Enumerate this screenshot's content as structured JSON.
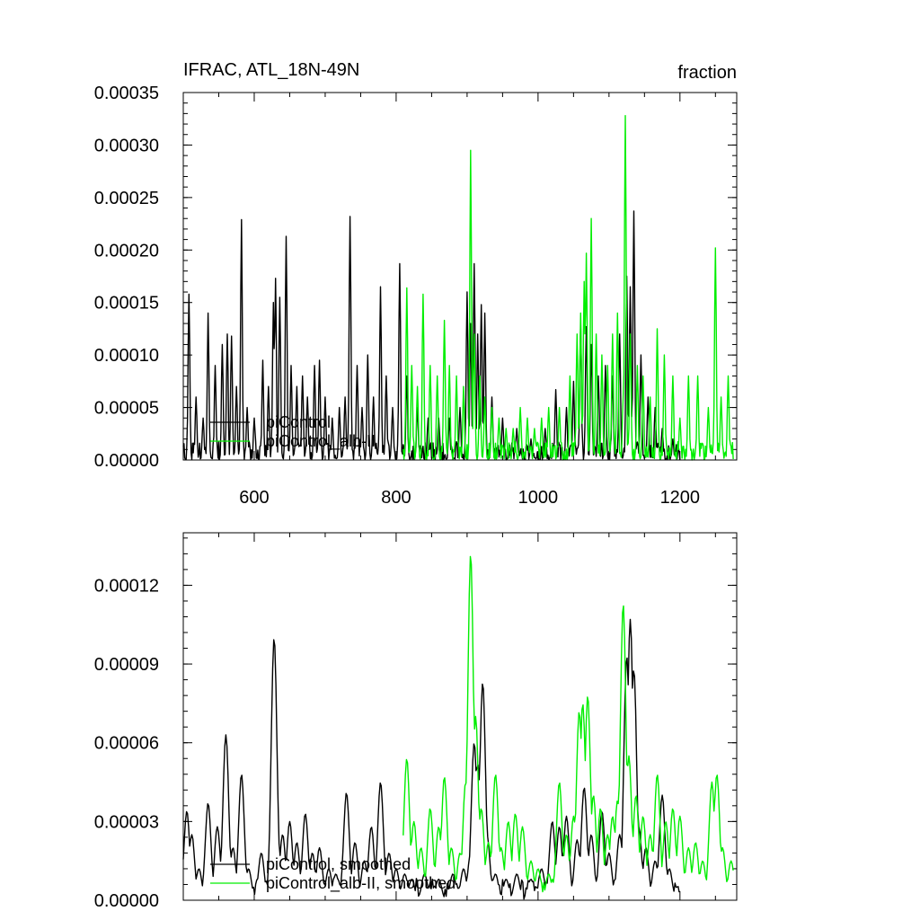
{
  "chart_data": [
    {
      "type": "line",
      "title_left": "IFRAC, ATL_18N-49N",
      "title_right": "fraction",
      "xlim": [
        500,
        1280
      ],
      "ylim": [
        0,
        0.00035
      ],
      "xticks": [
        600,
        800,
        1000,
        1200
      ],
      "xtick_labels": [
        "600",
        "800",
        "1000",
        "1200"
      ],
      "yticks": [
        0,
        5e-05,
        0.0001,
        0.00015,
        0.0002,
        0.00025,
        0.0003,
        0.00035
      ],
      "ytick_labels": [
        "0.00000",
        "0.00005",
        "0.00010",
        "0.00015",
        "0.00020",
        "0.00025",
        "0.00030",
        "0.00035"
      ],
      "legend_position": "bottom-left",
      "series": [
        {
          "name": "piControl",
          "color": "#000000",
          "x_start": 500,
          "x_end": 1200,
          "peaks": [
            [
              508,
              0.000158
            ],
            [
              518,
              6e-05
            ],
            [
              528,
              4e-05
            ],
            [
              535,
              0.00014
            ],
            [
              545,
              9e-05
            ],
            [
              555,
              0.00011
            ],
            [
              562,
              0.00012
            ],
            [
              568,
              0.000118
            ],
            [
              575,
              7e-05
            ],
            [
              582,
              0.000229
            ],
            [
              590,
              5e-05
            ],
            [
              600,
              4e-05
            ],
            [
              612,
              9.5e-05
            ],
            [
              620,
              7e-05
            ],
            [
              627,
              0.00015
            ],
            [
              630,
              0.000173
            ],
            [
              636,
              0.000155
            ],
            [
              645,
              0.000213
            ],
            [
              652,
              9e-05
            ],
            [
              660,
              7e-05
            ],
            [
              668,
              8e-05
            ],
            [
              675,
              6e-05
            ],
            [
              685,
              9e-05
            ],
            [
              692,
              9.5e-05
            ],
            [
              700,
              6e-05
            ],
            [
              710,
              4e-05
            ],
            [
              720,
              5e-05
            ],
            [
              728,
              6e-05
            ],
            [
              735,
              0.000232
            ],
            [
              745,
              9e-05
            ],
            [
              752,
              5e-05
            ],
            [
              760,
              0.0001
            ],
            [
              768,
              6e-05
            ],
            [
              778,
              0.000165
            ],
            [
              786,
              8e-05
            ],
            [
              795,
              5e-05
            ],
            [
              805,
              0.000187
            ],
            [
              815,
              8e-05
            ],
            [
              830,
              5e-05
            ],
            [
              845,
              4e-05
            ],
            [
              860,
              4e-05
            ],
            [
              875,
              4e-05
            ],
            [
              890,
              5e-05
            ],
            [
              900,
              0.00016
            ],
            [
              905,
              0.00013
            ],
            [
              910,
              0.000187
            ],
            [
              915,
              0.00012
            ],
            [
              920,
              0.000148
            ],
            [
              925,
              0.00014
            ],
            [
              935,
              6e-05
            ],
            [
              950,
              4e-05
            ],
            [
              970,
              3e-05
            ],
            [
              990,
              2e-05
            ],
            [
              1010,
              3e-05
            ],
            [
              1025,
              6.7e-05
            ],
            [
              1040,
              5e-05
            ],
            [
              1050,
              7.5e-05
            ],
            [
              1060,
              0.00013
            ],
            [
              1068,
              0.000127
            ],
            [
              1075,
              0.00011
            ],
            [
              1085,
              8e-05
            ],
            [
              1095,
              9e-05
            ],
            [
              1105,
              8e-05
            ],
            [
              1115,
              0.00012
            ],
            [
              1125,
              0.000175
            ],
            [
              1130,
              0.000165
            ],
            [
              1135,
              0.000237
            ],
            [
              1145,
              0.0001
            ],
            [
              1155,
              6e-05
            ],
            [
              1165,
              5e-05
            ],
            [
              1175,
              3e-05
            ],
            [
              1190,
              2e-05
            ]
          ]
        },
        {
          "name": "piControl_alb-II",
          "color": "#00ee00",
          "x_start": 810,
          "x_end": 1275,
          "peaks": [
            [
              815,
              0.000164
            ],
            [
              822,
              9e-05
            ],
            [
              830,
              7e-05
            ],
            [
              838,
              0.000158
            ],
            [
              848,
              9e-05
            ],
            [
              858,
              8e-05
            ],
            [
              868,
              0.000133
            ],
            [
              875,
              9e-05
            ],
            [
              885,
              8e-05
            ],
            [
              895,
              7e-05
            ],
            [
              905,
              0.000295
            ],
            [
              910,
              0.00012
            ],
            [
              918,
              8e-05
            ],
            [
              925,
              6e-05
            ],
            [
              935,
              5e-05
            ],
            [
              945,
              4e-05
            ],
            [
              955,
              3e-05
            ],
            [
              965,
              3e-05
            ],
            [
              975,
              5e-05
            ],
            [
              985,
              4e-05
            ],
            [
              995,
              3e-05
            ],
            [
              1005,
              4e-05
            ],
            [
              1015,
              5e-05
            ],
            [
              1030,
              5e-05
            ],
            [
              1045,
              8e-05
            ],
            [
              1055,
              0.00012
            ],
            [
              1060,
              0.00014
            ],
            [
              1065,
              0.00017
            ],
            [
              1068,
              0.000197
            ],
            [
              1075,
              0.00023
            ],
            [
              1082,
              0.00012
            ],
            [
              1090,
              0.0001
            ],
            [
              1098,
              9e-05
            ],
            [
              1105,
              0.00012
            ],
            [
              1112,
              0.00014
            ],
            [
              1120,
              6e-05
            ],
            [
              1123,
              0.000328
            ],
            [
              1130,
              0.00012
            ],
            [
              1140,
              9e-05
            ],
            [
              1148,
              8e-05
            ],
            [
              1158,
              6e-05
            ],
            [
              1168,
              0.000125
            ],
            [
              1178,
              0.0001
            ],
            [
              1190,
              8e-05
            ],
            [
              1200,
              4e-05
            ],
            [
              1212,
              8e-05
            ],
            [
              1225,
              8e-05
            ],
            [
              1240,
              5e-05
            ],
            [
              1250,
              0.000202
            ],
            [
              1258,
              6e-05
            ],
            [
              1268,
              8e-05
            ]
          ]
        }
      ]
    },
    {
      "type": "line",
      "xlim": [
        500,
        1280
      ],
      "ylim": [
        0,
        0.00014
      ],
      "xticks": [
        600,
        800,
        1000,
        1200
      ],
      "yticks": [
        0,
        3e-05,
        6e-05,
        9e-05,
        0.00012
      ],
      "ytick_labels": [
        "0.00000",
        "0.00003",
        "0.00006",
        "0.00009",
        "0.00012"
      ],
      "legend_position": "bottom-left",
      "series": [
        {
          "name": "piControl, smoothed",
          "color": "#000000",
          "x_start": 500,
          "x_end": 1200,
          "peaks": [
            [
              505,
              3.4e-05
            ],
            [
              512,
              2.5e-05
            ],
            [
              522,
              1.2e-05
            ],
            [
              535,
              3.7e-05
            ],
            [
              548,
              2.8e-05
            ],
            [
              560,
              6.3e-05
            ],
            [
              570,
              2e-05
            ],
            [
              582,
              4.8e-05
            ],
            [
              592,
              1.2e-05
            ],
            [
              610,
              1.8e-05
            ],
            [
              628,
              0.0001
            ],
            [
              640,
              2.5e-05
            ],
            [
              650,
              3e-05
            ],
            [
              660,
              2.2e-05
            ],
            [
              672,
              3.3e-05
            ],
            [
              682,
              1.8e-05
            ],
            [
              692,
              2e-05
            ],
            [
              705,
              1.2e-05
            ],
            [
              715,
              1e-05
            ],
            [
              730,
              4.1e-05
            ],
            [
              742,
              2.2e-05
            ],
            [
              755,
              1.5e-05
            ],
            [
              765,
              2.8e-05
            ],
            [
              778,
              4.5e-05
            ],
            [
              790,
              1.8e-05
            ],
            [
              800,
              1.2e-05
            ],
            [
              812,
              1e-05
            ],
            [
              822,
              8e-06
            ],
            [
              840,
              1e-05
            ],
            [
              860,
              8e-06
            ],
            [
              880,
              1e-05
            ],
            [
              895,
              1.2e-05
            ],
            [
              905,
              1.8e-05
            ],
            [
              910,
              6e-05
            ],
            [
              915,
              5.2e-05
            ],
            [
              922,
              8.3e-05
            ],
            [
              928,
              2.5e-05
            ],
            [
              940,
              1e-05
            ],
            [
              955,
              8e-06
            ],
            [
              970,
              1e-05
            ],
            [
              990,
              8e-06
            ],
            [
              1005,
              1.2e-05
            ],
            [
              1020,
              3e-05
            ],
            [
              1030,
              2.8e-05
            ],
            [
              1040,
              3.2e-05
            ],
            [
              1055,
              2.3e-05
            ],
            [
              1065,
              4.3e-05
            ],
            [
              1075,
              2.5e-05
            ],
            [
              1090,
              3.4e-05
            ],
            [
              1100,
              1.8e-05
            ],
            [
              1115,
              2.5e-05
            ],
            [
              1125,
              9.3e-05
            ],
            [
              1130,
              0.000107
            ],
            [
              1135,
              8.8e-05
            ],
            [
              1142,
              2.8e-05
            ],
            [
              1152,
              2e-05
            ],
            [
              1165,
              1.5e-05
            ],
            [
              1175,
              4e-05
            ],
            [
              1185,
              1.2e-05
            ],
            [
              1195,
              5e-06
            ]
          ]
        },
        {
          "name": "piControl_alb-II, smoothed",
          "color": "#00ee00",
          "x_start": 810,
          "x_end": 1275,
          "peaks": [
            [
              815,
              5.4e-05
            ],
            [
              825,
              3e-05
            ],
            [
              835,
              2e-05
            ],
            [
              848,
              3.5e-05
            ],
            [
              860,
              2.8e-05
            ],
            [
              868,
              4.7e-05
            ],
            [
              878,
              2e-05
            ],
            [
              890,
              1.8e-05
            ],
            [
              898,
              4.5e-05
            ],
            [
              905,
              0.000132
            ],
            [
              912,
              7e-05
            ],
            [
              920,
              3.5e-05
            ],
            [
              930,
              2.2e-05
            ],
            [
              940,
              4.8e-05
            ],
            [
              948,
              2e-05
            ],
            [
              958,
              3e-05
            ],
            [
              968,
              3.3e-05
            ],
            [
              978,
              2.8e-05
            ],
            [
              990,
              1.5e-05
            ],
            [
              1000,
              1.2e-05
            ],
            [
              1015,
              1e-05
            ],
            [
              1030,
              4.5e-05
            ],
            [
              1040,
              2.5e-05
            ],
            [
              1050,
              3.2e-05
            ],
            [
              1058,
              7.2e-05
            ],
            [
              1063,
              7.5e-05
            ],
            [
              1070,
              7.8e-05
            ],
            [
              1078,
              4e-05
            ],
            [
              1088,
              3.5e-05
            ],
            [
              1098,
              2.5e-05
            ],
            [
              1105,
              3.2e-05
            ],
            [
              1112,
              3.8e-05
            ],
            [
              1120,
              0.000113
            ],
            [
              1128,
              5.5e-05
            ],
            [
              1138,
              4e-05
            ],
            [
              1148,
              3.2e-05
            ],
            [
              1158,
              2.5e-05
            ],
            [
              1168,
              4.8e-05
            ],
            [
              1180,
              3e-05
            ],
            [
              1190,
              3.5e-05
            ],
            [
              1200,
              3.2e-05
            ],
            [
              1212,
              2e-05
            ],
            [
              1222,
              2.2e-05
            ],
            [
              1232,
              1.5e-05
            ],
            [
              1245,
              4.5e-05
            ],
            [
              1252,
              4.8e-05
            ],
            [
              1260,
              2e-05
            ],
            [
              1266,
              5e-06
            ],
            [
              1272,
              1.5e-05
            ]
          ]
        }
      ]
    }
  ]
}
